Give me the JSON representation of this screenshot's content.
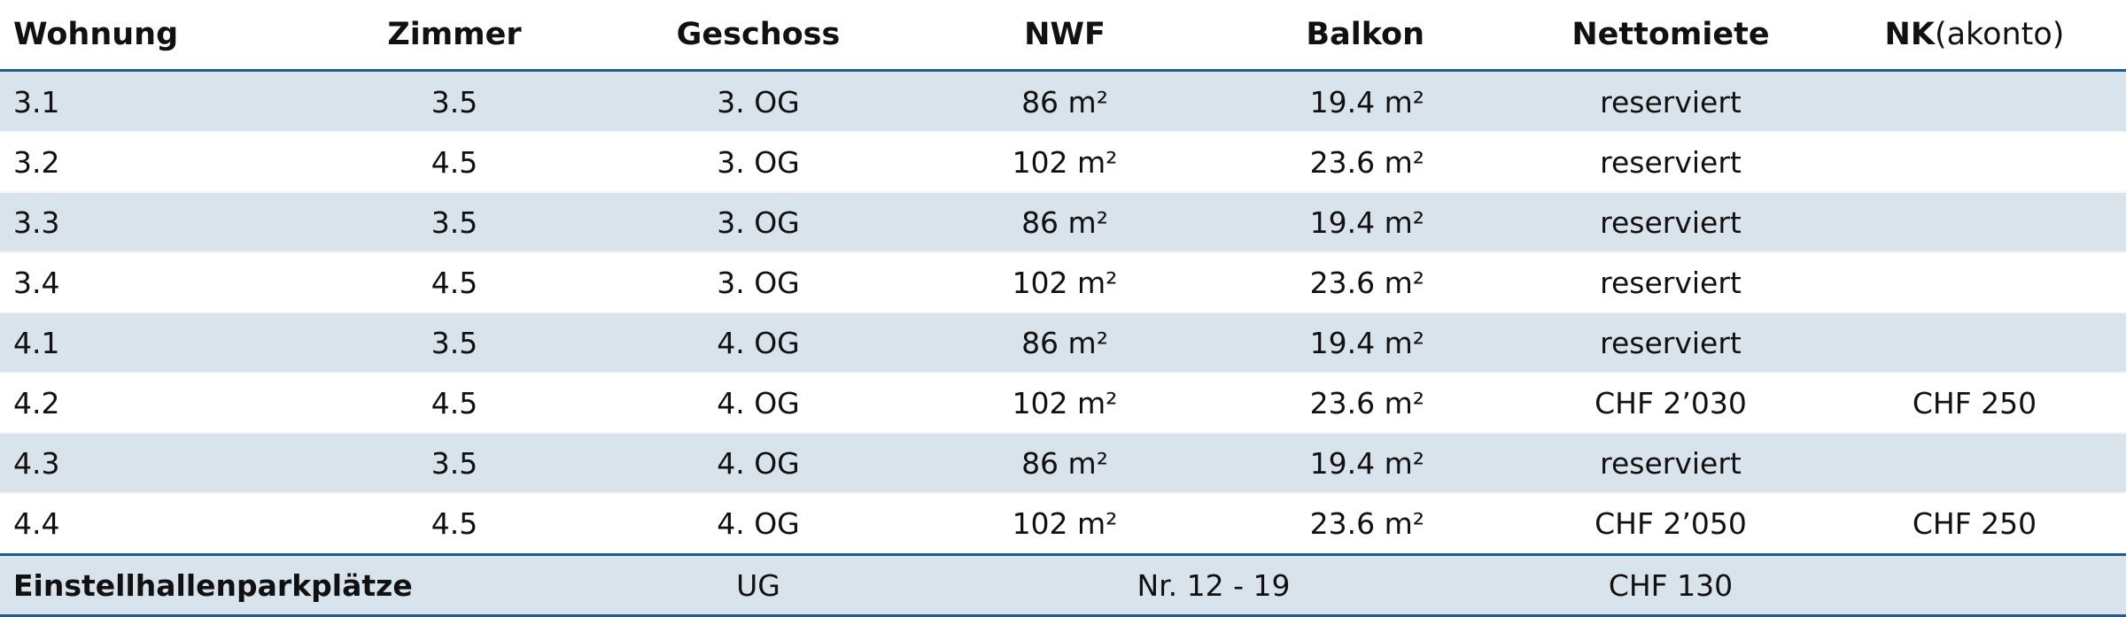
{
  "table": {
    "headers": [
      "Wohnung",
      "Zimmer",
      "Geschoss",
      "NWF",
      "Balkon",
      "Nettomiete",
      {
        "strong": "NK",
        "normal": "(akonto)"
      }
    ],
    "rows": [
      [
        "3.1",
        "3.5",
        "3. OG",
        "86 m²",
        "19.4 m²",
        "reserviert"
      ],
      [
        "3.2",
        "4.5",
        "3. OG",
        "102 m²",
        "23.6 m²",
        "reserviert"
      ],
      [
        "3.3",
        "3.5",
        "3. OG",
        "86 m²",
        "19.4 m²",
        "reserviert"
      ],
      [
        "3.4",
        "4.5",
        "3. OG",
        "102 m²",
        "23.6 m²",
        "reserviert"
      ],
      [
        "4.1",
        "3.5",
        "4. OG",
        "86 m²",
        "19.4 m²",
        "reserviert"
      ],
      [
        "4.2",
        "4.5",
        "4. OG",
        "102 m²",
        "23.6 m²",
        "CHF 2’030",
        "CHF 250"
      ],
      [
        "4.3",
        "3.5",
        "4. OG",
        "86 m²",
        "19.4 m²",
        "reserviert"
      ],
      [
        "4.4",
        "4.5",
        "4. OG",
        "102 m²",
        "23.6 m²",
        "CHF 2’050",
        "CHF 250"
      ]
    ],
    "footer": {
      "label": "Einstellhallenparkplätze",
      "floor": "UG",
      "numbers": "Nr. 12 - 19",
      "price": "CHF 130"
    }
  }
}
